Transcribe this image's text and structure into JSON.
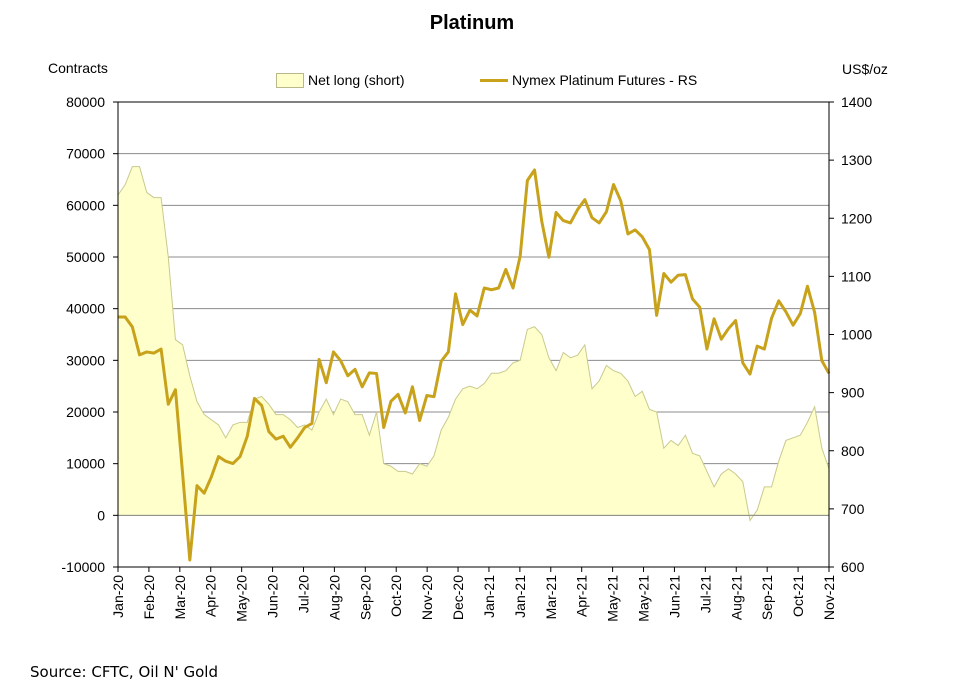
{
  "chart_data": {
    "type": "area+line",
    "title": "Platinum",
    "left_axis_label": "Contracts",
    "right_axis_label": "US$/oz",
    "source": "Source: CFTC, Oil N' Gold",
    "left_ylim": [
      -10000,
      80000
    ],
    "left_ticks": [
      "-10000",
      "0",
      "10000",
      "20000",
      "30000",
      "40000",
      "50000",
      "60000",
      "70000",
      "80000"
    ],
    "left_tick_values": [
      -10000,
      0,
      10000,
      20000,
      30000,
      40000,
      50000,
      60000,
      70000,
      80000
    ],
    "right_ylim": [
      600,
      1400
    ],
    "right_ticks": [
      "600",
      "700",
      "800",
      "900",
      "1000",
      "1100",
      "1200",
      "1300",
      "1400"
    ],
    "right_tick_values": [
      600,
      700,
      800,
      900,
      1000,
      1100,
      1200,
      1300,
      1400
    ],
    "x_month_labels": [
      "Jan-20",
      "Feb-20",
      "Mar-20",
      "Apr-20",
      "May-20",
      "Jun-20",
      "Jul-20",
      "Aug-20",
      "Sep-20",
      "Oct-20",
      "Nov-20",
      "Dec-20",
      "Jan-21",
      "Jan-21",
      "Mar-21",
      "Apr-21",
      "May-21",
      "May-21",
      "Jun-21",
      "Jul-21",
      "Aug-21",
      "Sep-21",
      "Oct-21",
      "Nov-21"
    ],
    "grid": "horizontal",
    "legend_position": "top",
    "series": [
      {
        "name": "Net long (short)",
        "kind": "area",
        "axis": "left",
        "color": "#ffffcc",
        "values": [
          62000,
          64000,
          67500,
          67500,
          62500,
          61500,
          61500,
          50000,
          34000,
          33000,
          27000,
          22000,
          19500,
          18500,
          17500,
          15000,
          17500,
          18000,
          18000,
          22500,
          23000,
          21500,
          19500,
          19500,
          18500,
          17000,
          17500,
          16500,
          20000,
          22500,
          19500,
          22500,
          22000,
          19500,
          19500,
          15500,
          20000,
          10000,
          9500,
          8500,
          8500,
          8000,
          10000,
          9500,
          11500,
          16500,
          19000,
          22500,
          24500,
          25000,
          24500,
          25500,
          27500,
          27500,
          28000,
          29500,
          30000,
          36000,
          36500,
          35000,
          30500,
          28000,
          31500,
          30500,
          31000,
          33000,
          24500,
          26000,
          29000,
          28000,
          27500,
          26000,
          23000,
          24000,
          20500,
          20000,
          13000,
          14500,
          13500,
          15500,
          12000,
          11500,
          8500,
          5500,
          8000,
          9000,
          8000,
          6500,
          -1000,
          1000,
          5500,
          5500,
          10500,
          14500,
          15000,
          15500,
          18000,
          21000,
          13000,
          9000
        ]
      },
      {
        "name": "Nymex Platinum Futures - RS",
        "kind": "line",
        "axis": "right",
        "color": "#c8a21a",
        "values": [
          1030,
          1030,
          1013,
          965,
          970,
          968,
          975,
          880,
          905,
          760,
          612,
          740,
          727,
          755,
          790,
          782,
          778,
          790,
          825,
          890,
          878,
          833,
          820,
          825,
          806,
          822,
          840,
          847,
          957,
          917,
          970,
          955,
          929,
          940,
          910,
          934,
          933,
          840,
          885,
          897,
          865,
          910,
          852,
          895,
          893,
          954,
          970,
          1070,
          1017,
          1042,
          1032,
          1080,
          1077,
          1080,
          1112,
          1080,
          1135,
          1265,
          1283,
          1195,
          1133,
          1210,
          1196,
          1192,
          1215,
          1232,
          1201,
          1192,
          1211,
          1258,
          1230,
          1173,
          1180,
          1168,
          1146,
          1033,
          1105,
          1090,
          1102,
          1103,
          1061,
          1047,
          975,
          1027,
          992,
          1010,
          1024,
          951,
          932,
          980,
          975,
          1028,
          1058,
          1039,
          1016,
          1036,
          1083,
          1038,
          955,
          933
        ]
      }
    ]
  }
}
